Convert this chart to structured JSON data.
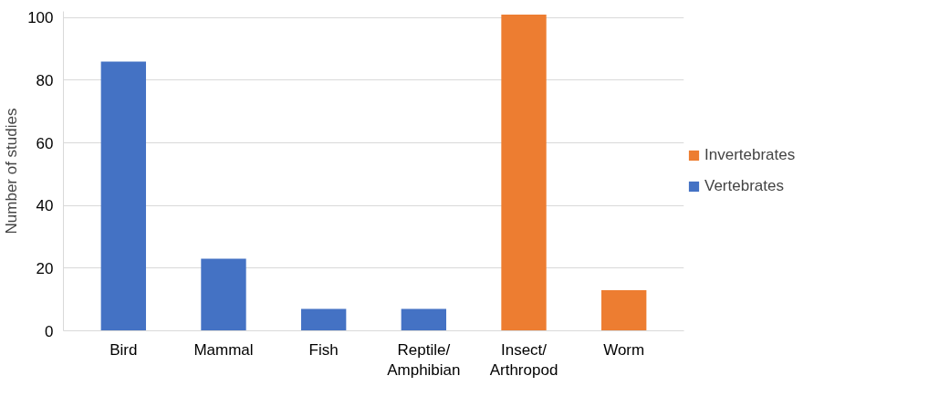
{
  "chart_data": {
    "type": "bar",
    "ylabel": "Number of studies",
    "categories": [
      "Bird",
      "Mammal",
      "Fish",
      "Reptile/ Amphibian",
      "Insect/ Arthropod",
      "Worm"
    ],
    "series": [
      {
        "name": "Invertebrates",
        "color": "#ed7d31",
        "values": [
          null,
          null,
          null,
          null,
          101,
          13
        ]
      },
      {
        "name": "Vertebrates",
        "color": "#4472c4",
        "values": [
          86,
          23,
          7,
          7,
          null,
          null
        ]
      }
    ],
    "ylim": [
      0,
      102
    ],
    "yticks": [
      0,
      20,
      40,
      60,
      80,
      100
    ],
    "grid": "y",
    "legend": "right"
  }
}
